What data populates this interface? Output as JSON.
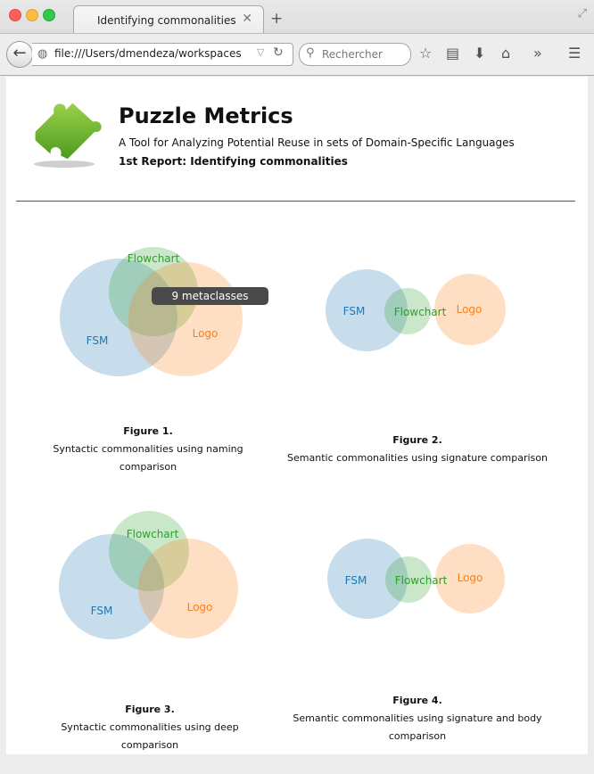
{
  "browser": {
    "tab_title": "Identifying commonalities",
    "tab_close": "✕",
    "new_tab": "+",
    "url": "file:///Users/dmendeza/workspaces/p",
    "search_placeholder": "Rechercher"
  },
  "header": {
    "title": "Puzzle Metrics",
    "subtitle": "A Tool for Analyzing Potential Reuse in sets of Domain-Specific Languages",
    "report": "1st Report: Identifying commonalities"
  },
  "colors": {
    "fsm": "#1f77b4",
    "flowchart": "#2ca02c",
    "logo": "#ff7f0e"
  },
  "tooltip": "9 metaclasses",
  "figures": [
    {
      "label": "Figure 1.",
      "caption": "Syntactic commonalities using naming comparison",
      "sets": [
        "FSM",
        "Flowchart",
        "Logo"
      ]
    },
    {
      "label": "Figure 2.",
      "caption": "Semantic commonalities using signature comparison",
      "sets": [
        "FSM",
        "Flowchart",
        "Logo"
      ]
    },
    {
      "label": "Figure 3.",
      "caption": "Syntactic commonalities using deep comparison",
      "sets": [
        "FSM",
        "Flowchart",
        "Logo"
      ]
    },
    {
      "label": "Figure 4.",
      "caption": "Semantic commonalities using signature and body comparison",
      "sets": [
        "FSM",
        "Flowchart",
        "Logo"
      ]
    }
  ]
}
